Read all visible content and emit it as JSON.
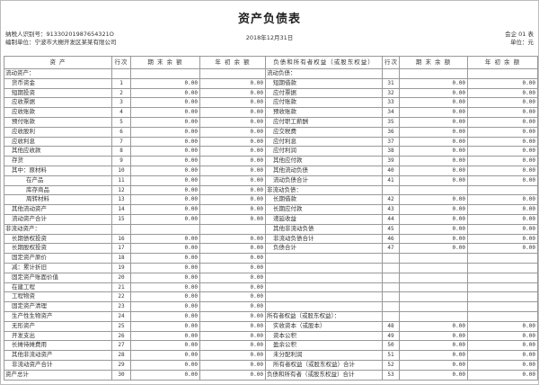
{
  "title": "资产负债表",
  "taxpayer_id": "纳税人识别号：91330201987654321O",
  "company": "编制单位：宁波市大榭开发区某某有限公司",
  "date": "2018年12月31日",
  "form_no": "会企 01 表",
  "unit": "单位：元",
  "headers": [
    "资 产",
    "行次",
    "期 末 余 额",
    "年 初 余 额",
    "负债和所有者权益（或股东权益）",
    "行次",
    "期 末 余 额",
    "年 初 余 额"
  ],
  "left_rows": [
    {
      "name": "流动资产：",
      "indent": 0,
      "line": "",
      "end": "",
      "begin": ""
    },
    {
      "name": "货币资金",
      "indent": 1,
      "line": "1",
      "end": "0.00",
      "begin": "0.00"
    },
    {
      "name": "短期投资",
      "indent": 1,
      "line": "2",
      "end": "0.00",
      "begin": "0.00"
    },
    {
      "name": "应收票据",
      "indent": 1,
      "line": "3",
      "end": "0.00",
      "begin": "0.00"
    },
    {
      "name": "应收账款",
      "indent": 1,
      "line": "4",
      "end": "0.00",
      "begin": "0.00"
    },
    {
      "name": "预付账款",
      "indent": 1,
      "line": "5",
      "end": "0.00",
      "begin": "0.00"
    },
    {
      "name": "应收股利",
      "indent": 1,
      "line": "6",
      "end": "0.00",
      "begin": "0.00"
    },
    {
      "name": "应收利息",
      "indent": 1,
      "line": "7",
      "end": "0.00",
      "begin": "0.00"
    },
    {
      "name": "其他应收款",
      "indent": 1,
      "line": "8",
      "end": "0.00",
      "begin": "0.00"
    },
    {
      "name": "存货",
      "indent": 1,
      "line": "9",
      "end": "0.00",
      "begin": "0.00"
    },
    {
      "name": "其中：原材料",
      "indent": 1,
      "line": "10",
      "end": "0.00",
      "begin": "0.00"
    },
    {
      "name": "在产品",
      "indent": 2,
      "line": "11",
      "end": "0.00",
      "begin": "0.00"
    },
    {
      "name": "库存商品",
      "indent": 2,
      "line": "12",
      "end": "0.00",
      "begin": "0.00"
    },
    {
      "name": "周转材料",
      "indent": 2,
      "line": "13",
      "end": "0.00",
      "begin": "0.00"
    },
    {
      "name": "其他流动资产",
      "indent": 1,
      "line": "14",
      "end": "0.00",
      "begin": "0.00"
    },
    {
      "name": "流动资产合计",
      "indent": 1,
      "line": "15",
      "end": "0.00",
      "begin": "0.00"
    },
    {
      "name": "非流动资产：",
      "indent": 0,
      "line": "",
      "end": "",
      "begin": ""
    },
    {
      "name": "长期债权投资",
      "indent": 1,
      "line": "16",
      "end": "0.00",
      "begin": "0.00"
    },
    {
      "name": "长期股权投资",
      "indent": 1,
      "line": "17",
      "end": "0.00",
      "begin": "0.00"
    },
    {
      "name": "固定资产原价",
      "indent": 1,
      "line": "18",
      "end": "0.00",
      "begin": "0.00"
    },
    {
      "name": "减：累计折旧",
      "indent": 1,
      "line": "19",
      "end": "0.00",
      "begin": "0.00"
    },
    {
      "name": "固定资产账面价值",
      "indent": 1,
      "line": "20",
      "end": "0.00",
      "begin": "0.00"
    },
    {
      "name": "在建工程",
      "indent": 1,
      "line": "21",
      "end": "0.00",
      "begin": "0.00"
    },
    {
      "name": "工程物资",
      "indent": 1,
      "line": "22",
      "end": "0.00",
      "begin": "0.00"
    },
    {
      "name": "固定资产清理",
      "indent": 1,
      "line": "23",
      "end": "0.00",
      "begin": "0.00"
    },
    {
      "name": "生产性生物资产",
      "indent": 1,
      "line": "24",
      "end": "0.00",
      "begin": "0.00"
    },
    {
      "name": "无形资产",
      "indent": 1,
      "line": "25",
      "end": "0.00",
      "begin": "0.00"
    },
    {
      "name": "开发支出",
      "indent": 1,
      "line": "26",
      "end": "0.00",
      "begin": "0.00"
    },
    {
      "name": "长摊待摊费用",
      "indent": 1,
      "line": "27",
      "end": "0.00",
      "begin": "0.00"
    },
    {
      "name": "其他非流动资产",
      "indent": 1,
      "line": "28",
      "end": "0.00",
      "begin": "0.00"
    },
    {
      "name": "非流动资产合计",
      "indent": 1,
      "line": "29",
      "end": "0.00",
      "begin": "0.00"
    },
    {
      "name": "资产总计",
      "indent": 0,
      "line": "30",
      "end": "0.00",
      "begin": "0.00"
    }
  ],
  "right_rows": [
    {
      "name": "流动负债：",
      "indent": 0,
      "line": "",
      "end": "",
      "begin": ""
    },
    {
      "name": "短期借款",
      "indent": 1,
      "line": "31",
      "end": "0.00",
      "begin": "0.00"
    },
    {
      "name": "应付票据",
      "indent": 1,
      "line": "32",
      "end": "0.00",
      "begin": "0.00"
    },
    {
      "name": "应付账款",
      "indent": 1,
      "line": "33",
      "end": "0.00",
      "begin": "0.00"
    },
    {
      "name": "预收账款",
      "indent": 1,
      "line": "34",
      "end": "0.00",
      "begin": "0.00"
    },
    {
      "name": "应付职工薪酬",
      "indent": 1,
      "line": "35",
      "end": "0.00",
      "begin": "0.00"
    },
    {
      "name": "应交税费",
      "indent": 1,
      "line": "36",
      "end": "0.00",
      "begin": "0.00"
    },
    {
      "name": "应付利息",
      "indent": 1,
      "line": "37",
      "end": "0.00",
      "begin": "0.00"
    },
    {
      "name": "应付利润",
      "indent": 1,
      "line": "38",
      "end": "0.00",
      "begin": "0.00"
    },
    {
      "name": "其他应付款",
      "indent": 1,
      "line": "39",
      "end": "0.00",
      "begin": "0.00"
    },
    {
      "name": "其他流动负债",
      "indent": 1,
      "line": "40",
      "end": "0.00",
      "begin": "0.00"
    },
    {
      "name": "流动负债合计",
      "indent": 1,
      "line": "41",
      "end": "0.00",
      "begin": "0.00"
    },
    {
      "name": "非流动负债：",
      "indent": 0,
      "line": "",
      "end": "",
      "begin": ""
    },
    {
      "name": "长期借款",
      "indent": 1,
      "line": "42",
      "end": "0.00",
      "begin": "0.00"
    },
    {
      "name": "长期应付款",
      "indent": 1,
      "line": "43",
      "end": "0.00",
      "begin": "0.00"
    },
    {
      "name": "递延收益",
      "indent": 1,
      "line": "44",
      "end": "0.00",
      "begin": "0.00"
    },
    {
      "name": "其他非流动负债",
      "indent": 1,
      "line": "45",
      "end": "0.00",
      "begin": "0.00"
    },
    {
      "name": "非流动负债合计",
      "indent": 1,
      "line": "46",
      "end": "0.00",
      "begin": "0.00"
    },
    {
      "name": "负债合计",
      "indent": 1,
      "line": "47",
      "end": "0.00",
      "begin": "0.00"
    },
    {
      "name": "",
      "indent": 0,
      "line": "",
      "end": "",
      "begin": ""
    },
    {
      "name": "",
      "indent": 0,
      "line": "",
      "end": "",
      "begin": ""
    },
    {
      "name": "",
      "indent": 0,
      "line": "",
      "end": "",
      "begin": ""
    },
    {
      "name": "",
      "indent": 0,
      "line": "",
      "end": "",
      "begin": ""
    },
    {
      "name": "",
      "indent": 0,
      "line": "",
      "end": "",
      "begin": ""
    },
    {
      "name": "",
      "indent": 0,
      "line": "",
      "end": "",
      "begin": ""
    },
    {
      "name": "所有者权益（或股东权益）：",
      "indent": 0,
      "line": "",
      "end": "",
      "begin": ""
    },
    {
      "name": "实收资本（或股本）",
      "indent": 1,
      "line": "48",
      "end": "0.00",
      "begin": "0.00"
    },
    {
      "name": "资本公积",
      "indent": 1,
      "line": "49",
      "end": "0.00",
      "begin": "0.00"
    },
    {
      "name": "盈余公积",
      "indent": 1,
      "line": "50",
      "end": "0.00",
      "begin": "0.00"
    },
    {
      "name": "未分配利润",
      "indent": 1,
      "line": "51",
      "end": "0.00",
      "begin": "0.00"
    },
    {
      "name": "所有者权益（或股东权益）合计",
      "indent": 1,
      "line": "52",
      "end": "0.00",
      "begin": "0.00"
    },
    {
      "name": "负债和所有者（或股东权益）合计",
      "indent": 0,
      "line": "53",
      "end": "0.00",
      "begin": "0.00"
    }
  ]
}
